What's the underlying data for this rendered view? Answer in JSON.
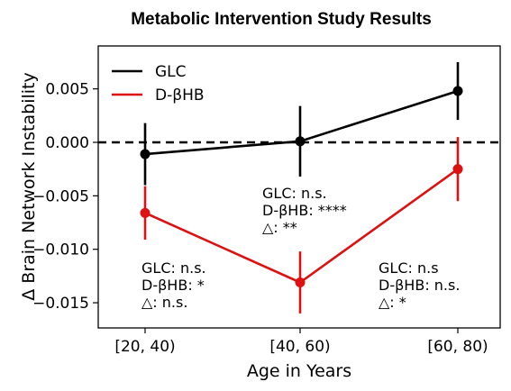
{
  "chart_data": {
    "type": "line",
    "title": "Metabolic Intervention Study Results",
    "xlabel": "Age in Years",
    "ylabel": "Δ Brain Network Instability",
    "categories": [
      "[20, 40)",
      "[40, 60)",
      "[60, 80)"
    ],
    "ylim": [
      -0.0165,
      0.0085
    ],
    "yticks": [
      0.005,
      0.0,
      -0.005,
      -0.01,
      -0.015
    ],
    "ytick_labels": [
      "0.005",
      "0.000",
      "−0.005",
      "−0.010",
      "−0.015"
    ],
    "reference_line": {
      "y": 0,
      "style": "dashed"
    },
    "legend_position": "top-left",
    "grid": false,
    "series": [
      {
        "name": "GLC",
        "color": "#000000",
        "values": [
          -0.0011,
          0.0001,
          0.0048
        ],
        "errors": [
          0.0029,
          0.0033,
          0.0027
        ]
      },
      {
        "name": "D-βHB",
        "color": "#dd1111",
        "values": [
          -0.0066,
          -0.0131,
          -0.0025
        ],
        "errors": [
          0.0025,
          0.0029,
          0.003
        ]
      }
    ],
    "annotations": [
      {
        "category": "[20, 40)",
        "lines": [
          "GLC: n.s.",
          "D-βHB: *",
          "△: n.s."
        ]
      },
      {
        "category": "[40, 60)",
        "lines": [
          "GLC: n.s.",
          "D-βHB: ****",
          "△: **"
        ]
      },
      {
        "category": "[60, 80)",
        "lines": [
          "GLC: n.s",
          "D-βHB: n.s.",
          "△: *"
        ]
      }
    ]
  }
}
